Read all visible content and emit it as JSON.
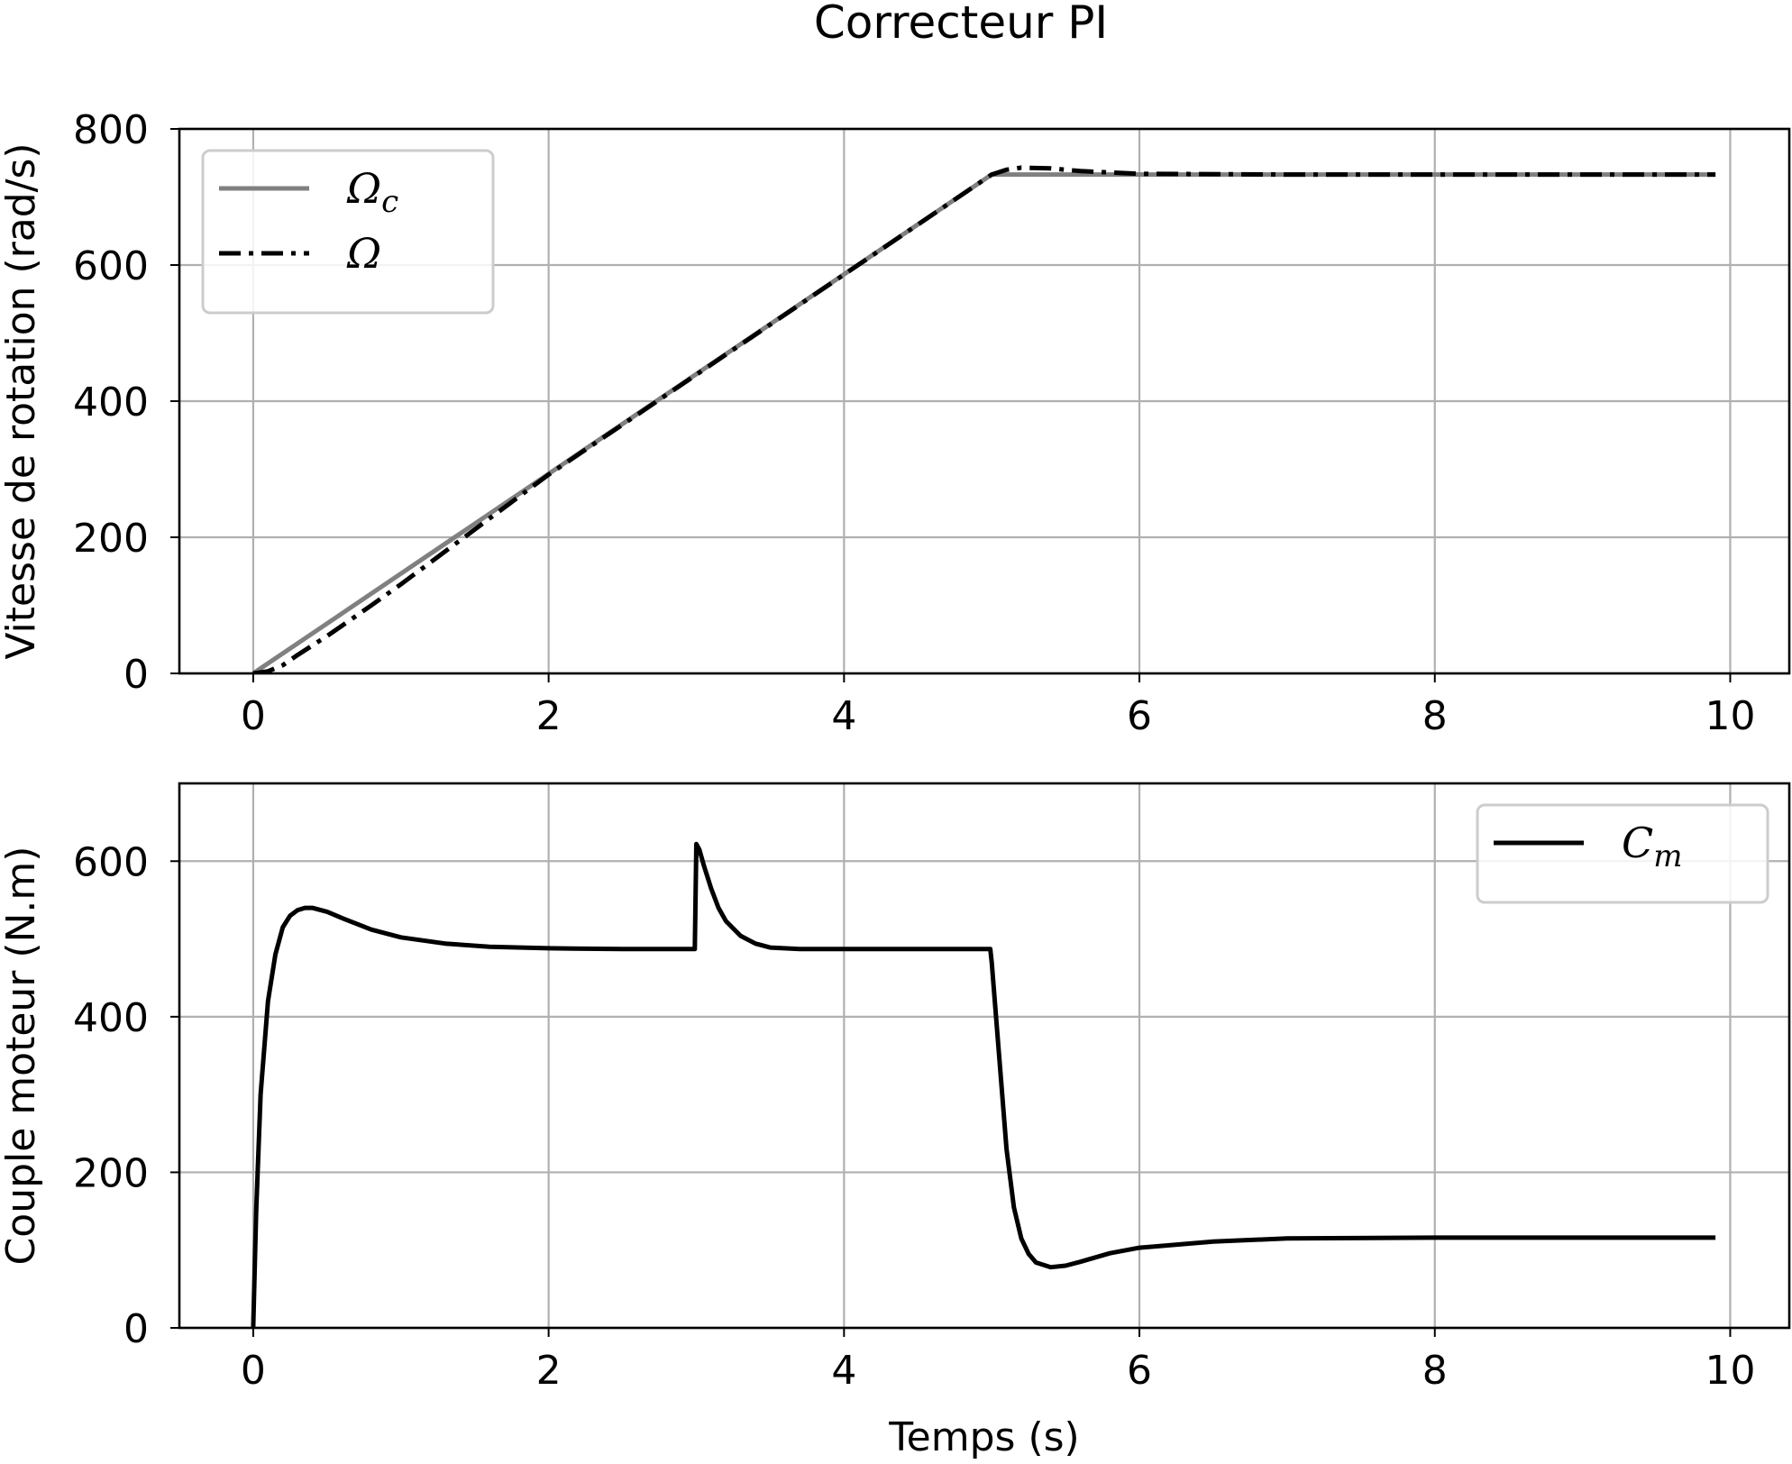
{
  "title": "Correcteur PI",
  "chart_data": [
    {
      "type": "line",
      "ylabel": "Vitesse de rotation (rad/s)",
      "xlabel": "",
      "xlim": [
        -0.5,
        10.4
      ],
      "ylim": [
        0,
        800
      ],
      "xticks": [
        0,
        2,
        4,
        6,
        8,
        10
      ],
      "yticks": [
        0,
        200,
        400,
        600,
        800
      ],
      "xtick_labels": [
        "0",
        "2",
        "4",
        "6",
        "8",
        "10"
      ],
      "ytick_labels": [
        "0",
        "200",
        "400",
        "600",
        "800"
      ],
      "grid": true,
      "legend_position": "top-left",
      "series": [
        {
          "name": "Ω_c",
          "legend_text": "Ωc",
          "color": "#808080",
          "style": "solid",
          "x": [
            0,
            5,
            9.9
          ],
          "y": [
            0,
            733,
            733
          ]
        },
        {
          "name": "Ω",
          "legend_text": "Ω",
          "color": "#000000",
          "style": "dashdot",
          "x": [
            0,
            0.1,
            0.2,
            0.3,
            0.5,
            0.8,
            1,
            2,
            3,
            4,
            5,
            5.1,
            5.2,
            5.4,
            5.6,
            6,
            7,
            8,
            9.9
          ],
          "y": [
            0,
            3,
            12,
            27,
            55,
            100,
            131,
            292,
            439,
            586,
            733,
            740,
            743,
            742,
            738,
            734,
            733,
            733,
            733
          ]
        }
      ]
    },
    {
      "type": "line",
      "ylabel": "Couple moteur (N.m)",
      "xlabel": "Temps (s)",
      "xlim": [
        -0.5,
        10.4
      ],
      "ylim": [
        0,
        700
      ],
      "xticks": [
        0,
        2,
        4,
        6,
        8,
        10
      ],
      "yticks": [
        0,
        200,
        400,
        600
      ],
      "xtick_labels": [
        "0",
        "2",
        "4",
        "6",
        "8",
        "10"
      ],
      "ytick_labels": [
        "0",
        "200",
        "400",
        "600"
      ],
      "grid": true,
      "legend_position": "top-right",
      "series": [
        {
          "name": "C_m",
          "legend_text": "Cm",
          "color": "#000000",
          "style": "solid",
          "x": [
            0,
            0.02,
            0.05,
            0.1,
            0.15,
            0.2,
            0.25,
            0.3,
            0.35,
            0.4,
            0.5,
            0.6,
            0.8,
            1.0,
            1.3,
            1.6,
            2,
            2.5,
            2.99,
            3.0,
            3.02,
            3.05,
            3.1,
            3.15,
            3.2,
            3.3,
            3.4,
            3.5,
            3.7,
            4,
            4.5,
            4.99,
            5.0,
            5.05,
            5.1,
            5.15,
            5.2,
            5.25,
            5.3,
            5.4,
            5.5,
            5.6,
            5.8,
            6,
            6.5,
            7,
            8,
            9,
            9.9
          ],
          "y": [
            0,
            150,
            300,
            420,
            480,
            515,
            530,
            537,
            540,
            540,
            535,
            527,
            512,
            502,
            494,
            490,
            488,
            487,
            487,
            622,
            615,
            595,
            565,
            540,
            523,
            504,
            494,
            489,
            487,
            487,
            487,
            487,
            470,
            350,
            230,
            155,
            115,
            95,
            84,
            78,
            80,
            85,
            96,
            103,
            111,
            115,
            116,
            116,
            116
          ]
        }
      ]
    }
  ]
}
